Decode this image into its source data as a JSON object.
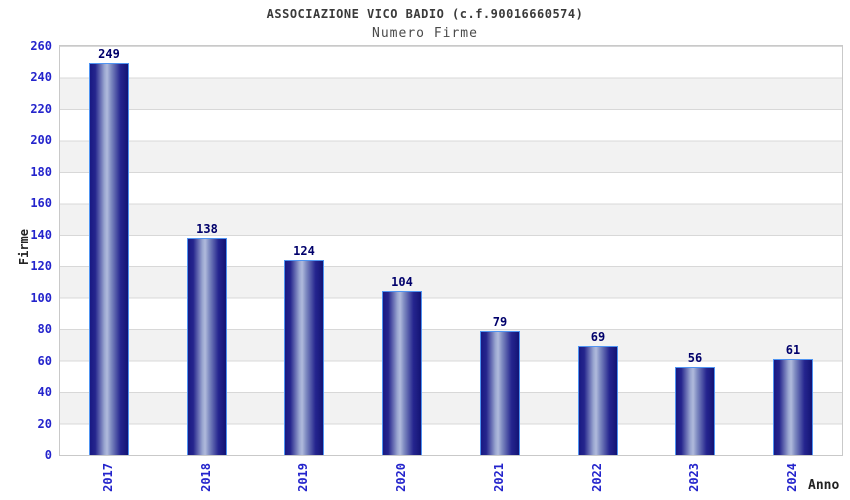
{
  "header": {
    "title": "ASSOCIAZIONE VICO BADIO (c.f.90016660574)",
    "subtitle": "Numero Firme"
  },
  "chart_data": {
    "type": "bar",
    "categories": [
      "2017",
      "2018",
      "2019",
      "2020",
      "2021",
      "2022",
      "2023",
      "2024"
    ],
    "values": [
      249,
      138,
      124,
      104,
      79,
      69,
      56,
      61
    ],
    "title": "ASSOCIAZIONE VICO BADIO (c.f.90016660574)",
    "subtitle": "Numero Firme",
    "xlabel": "Anno",
    "ylabel": "Firme",
    "ylim": [
      0,
      260
    ],
    "ytick_step": 20,
    "yticks": [
      0,
      20,
      40,
      60,
      80,
      100,
      120,
      140,
      160,
      180,
      200,
      220,
      240,
      260
    ],
    "grid": true,
    "legend": false,
    "bands_alternating": true,
    "colors": {
      "bar_dark": "#191983",
      "bar_light": "#b0badc",
      "bar_border": "#4f94f2",
      "axis_tick_label": "#2424cc",
      "value_label": "#00006b",
      "band_gray": "#f2f2f2",
      "grid_line": "#d8d8d8",
      "plot_border": "#c9c9c9"
    }
  }
}
